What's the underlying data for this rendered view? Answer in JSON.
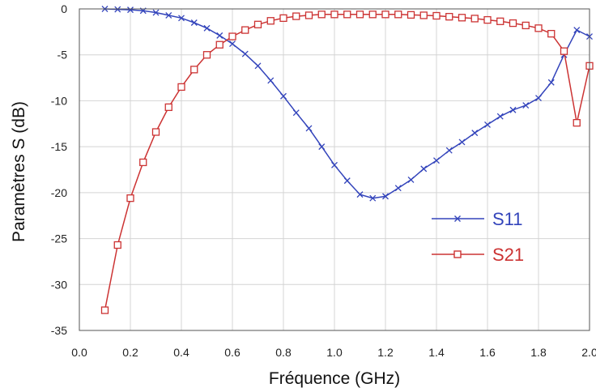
{
  "chart_data": {
    "type": "line",
    "title": "",
    "xlabel": "Fréquence (GHz)",
    "ylabel": "Paramètres S (dB)",
    "xlim": [
      0.0,
      2.0
    ],
    "ylim": [
      -35,
      0
    ],
    "x_ticks": [
      "0.0",
      "0.2",
      "0.4",
      "0.6",
      "0.8",
      "1.0",
      "1.2",
      "1.4",
      "1.6",
      "1.8",
      "2.0"
    ],
    "y_ticks": [
      "0",
      "-5",
      "-10",
      "-15",
      "-20",
      "-25",
      "-30",
      "-35"
    ],
    "grid": true,
    "legend_position": "center-right",
    "series": [
      {
        "name": "S11",
        "color": "#3344bb",
        "marker": "x",
        "x": [
          0.1,
          0.15,
          0.2,
          0.25,
          0.3,
          0.35,
          0.4,
          0.45,
          0.5,
          0.55,
          0.6,
          0.65,
          0.7,
          0.75,
          0.8,
          0.85,
          0.9,
          0.95,
          1.0,
          1.05,
          1.1,
          1.15,
          1.2,
          1.25,
          1.3,
          1.35,
          1.4,
          1.45,
          1.5,
          1.55,
          1.6,
          1.65,
          1.7,
          1.75,
          1.8,
          1.85,
          1.9,
          1.95,
          2.0
        ],
        "values": [
          0,
          -0.05,
          -0.1,
          -0.2,
          -0.4,
          -0.7,
          -1.0,
          -1.5,
          -2.1,
          -2.9,
          -3.8,
          -4.9,
          -6.2,
          -7.8,
          -9.5,
          -11.3,
          -13.0,
          -15.0,
          -17.0,
          -18.7,
          -20.2,
          -20.6,
          -20.4,
          -19.5,
          -18.6,
          -17.4,
          -16.5,
          -15.4,
          -14.5,
          -13.5,
          -12.6,
          -11.7,
          -11.0,
          -10.5,
          -9.7,
          -8.0,
          -5.0,
          -2.3,
          -3.0
        ]
      },
      {
        "name": "S21",
        "color": "#cc3333",
        "marker": "square",
        "x": [
          0.1,
          0.15,
          0.2,
          0.25,
          0.3,
          0.35,
          0.4,
          0.45,
          0.5,
          0.55,
          0.6,
          0.65,
          0.7,
          0.75,
          0.8,
          0.85,
          0.9,
          0.95,
          1.0,
          1.05,
          1.1,
          1.15,
          1.2,
          1.25,
          1.3,
          1.35,
          1.4,
          1.45,
          1.5,
          1.55,
          1.6,
          1.65,
          1.7,
          1.75,
          1.8,
          1.85,
          1.9,
          1.95,
          2.0
        ],
        "values": [
          -32.8,
          -25.7,
          -20.6,
          -16.7,
          -13.4,
          -10.7,
          -8.5,
          -6.6,
          -5.0,
          -3.9,
          -3.0,
          -2.3,
          -1.7,
          -1.3,
          -1.0,
          -0.8,
          -0.7,
          -0.6,
          -0.6,
          -0.6,
          -0.6,
          -0.6,
          -0.6,
          -0.6,
          -0.65,
          -0.7,
          -0.75,
          -0.85,
          -0.95,
          -1.05,
          -1.2,
          -1.35,
          -1.55,
          -1.8,
          -2.1,
          -2.7,
          -4.6,
          -12.4,
          -6.2
        ]
      }
    ]
  }
}
